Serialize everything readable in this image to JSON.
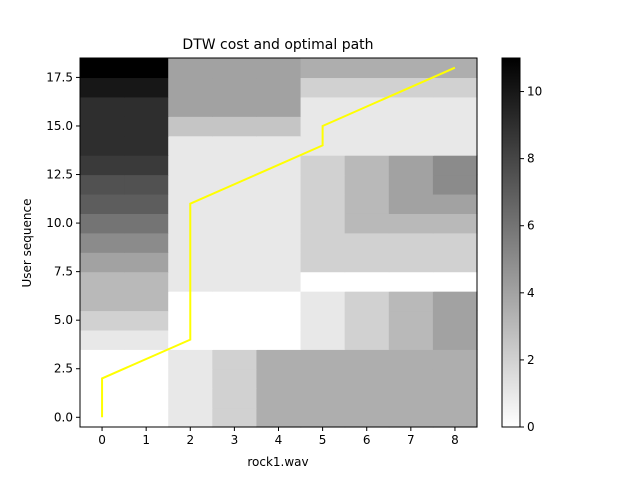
{
  "chart_data": {
    "type": "heatmap",
    "title": "DTW cost and optimal path",
    "xlabel": "rock1.wav",
    "ylabel": "User sequence",
    "x_categories": [
      0,
      1,
      2,
      3,
      4,
      5,
      6,
      7,
      8
    ],
    "y_categories": [
      0,
      1,
      2,
      3,
      4,
      5,
      6,
      7,
      8,
      9,
      10,
      11,
      12,
      13,
      14,
      15,
      16,
      17,
      18
    ],
    "xlim": [
      -0.5,
      8.5
    ],
    "ylim": [
      -0.5,
      18.5
    ],
    "x_ticks": [
      "0",
      "1",
      "2",
      "3",
      "4",
      "5",
      "6",
      "7",
      "8"
    ],
    "y_ticks": [
      "0.0",
      "2.5",
      "5.0",
      "7.5",
      "10.0",
      "12.5",
      "15.0",
      "17.5"
    ],
    "y_tick_values": [
      0,
      2.5,
      5,
      7.5,
      10,
      12.5,
      15,
      17.5
    ],
    "colormap": "gray_r",
    "vmin": 0,
    "vmax": 11,
    "colorbar_ticks": [
      "0",
      "2",
      "4",
      "6",
      "8",
      "10"
    ],
    "colorbar_tick_values": [
      0,
      2,
      4,
      6,
      8,
      10
    ],
    "cost_matrix": [
      [
        0,
        0,
        1,
        2,
        3.5,
        3.5,
        3.5,
        3.5,
        3.5
      ],
      [
        0,
        0,
        1,
        2,
        3.5,
        3.5,
        3.5,
        3.5,
        3.5
      ],
      [
        0,
        0,
        1,
        2,
        3.5,
        3.5,
        3.5,
        3.5,
        3.5
      ],
      [
        0,
        0,
        1,
        2,
        3.5,
        3.5,
        3.5,
        3.5,
        3.5
      ],
      [
        1,
        1,
        0,
        0,
        0,
        1,
        2,
        3,
        4
      ],
      [
        2,
        2,
        0,
        0,
        0,
        1,
        2,
        3,
        4
      ],
      [
        3,
        3,
        0,
        0,
        0,
        1,
        2,
        3,
        4
      ],
      [
        3,
        3,
        1,
        1,
        1,
        0,
        0,
        0,
        0
      ],
      [
        4,
        4,
        1,
        1,
        1,
        2,
        2,
        2,
        2
      ],
      [
        5,
        5,
        1,
        1,
        1,
        2,
        2,
        2,
        2
      ],
      [
        6,
        6,
        1,
        1,
        1,
        2,
        3,
        3,
        3
      ],
      [
        7,
        7,
        1,
        1,
        1,
        2,
        3,
        4,
        4
      ],
      [
        7.5,
        7.5,
        1,
        1,
        1,
        2,
        3,
        4,
        5
      ],
      [
        8.5,
        8.5,
        1,
        1,
        1,
        2,
        3,
        4,
        5
      ],
      [
        9,
        9,
        1,
        1,
        1,
        1,
        1,
        1,
        1
      ],
      [
        9,
        9,
        2.5,
        2.5,
        2.5,
        1,
        1,
        1,
        1
      ],
      [
        9,
        9,
        4,
        4,
        4,
        1,
        1,
        1,
        1
      ],
      [
        10,
        10,
        4,
        4,
        4,
        2,
        2,
        2,
        2
      ],
      [
        11,
        11,
        4,
        4,
        4,
        3.5,
        3.5,
        3.5,
        3.5
      ]
    ],
    "path": {
      "color": "#ffff00",
      "points": [
        [
          0,
          0
        ],
        [
          0,
          2
        ],
        [
          2,
          4
        ],
        [
          2,
          11
        ],
        [
          5,
          14
        ],
        [
          5,
          15
        ],
        [
          8,
          18
        ]
      ]
    },
    "grid": false
  }
}
